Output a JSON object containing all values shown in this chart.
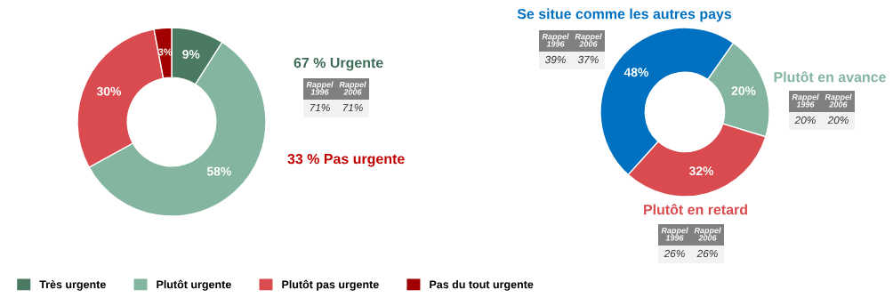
{
  "chart_data": [
    {
      "type": "donut",
      "categories": [
        "Très urgente",
        "Plutôt urgente",
        "Plutôt pas urgente",
        "Pas du tout urgente"
      ],
      "values": [
        9,
        58,
        30,
        3
      ],
      "colors": [
        "#4a7a62",
        "#84b5a0",
        "#d94b4e",
        "#a00000"
      ],
      "value_labels": [
        "9%",
        "58%",
        "30%",
        "3%"
      ],
      "legend": "bottom",
      "annotations": [
        "67 % Urgente",
        "Rappel 1996",
        "Rappel 2006",
        "71%",
        "71%",
        "33 % Pas urgente"
      ]
    },
    {
      "type": "donut",
      "categories": [
        "Plutôt en avance",
        "Plutôt en retard",
        "Se situe comme les autres pays"
      ],
      "values": [
        20,
        32,
        48
      ],
      "colors": [
        "#84b5a0",
        "#d94b4e",
        "#0070c0"
      ],
      "value_labels": [
        "20%",
        "32%",
        "48%"
      ],
      "annotations": [
        "Rappel 1996",
        "Rappel 2006",
        "20%",
        "20%",
        "Rappel 1996",
        "Rappel 2006",
        "26%",
        "26%",
        "Rappel 1996",
        "Rappel 2006",
        "39%",
        "37%"
      ]
    }
  ]
}
